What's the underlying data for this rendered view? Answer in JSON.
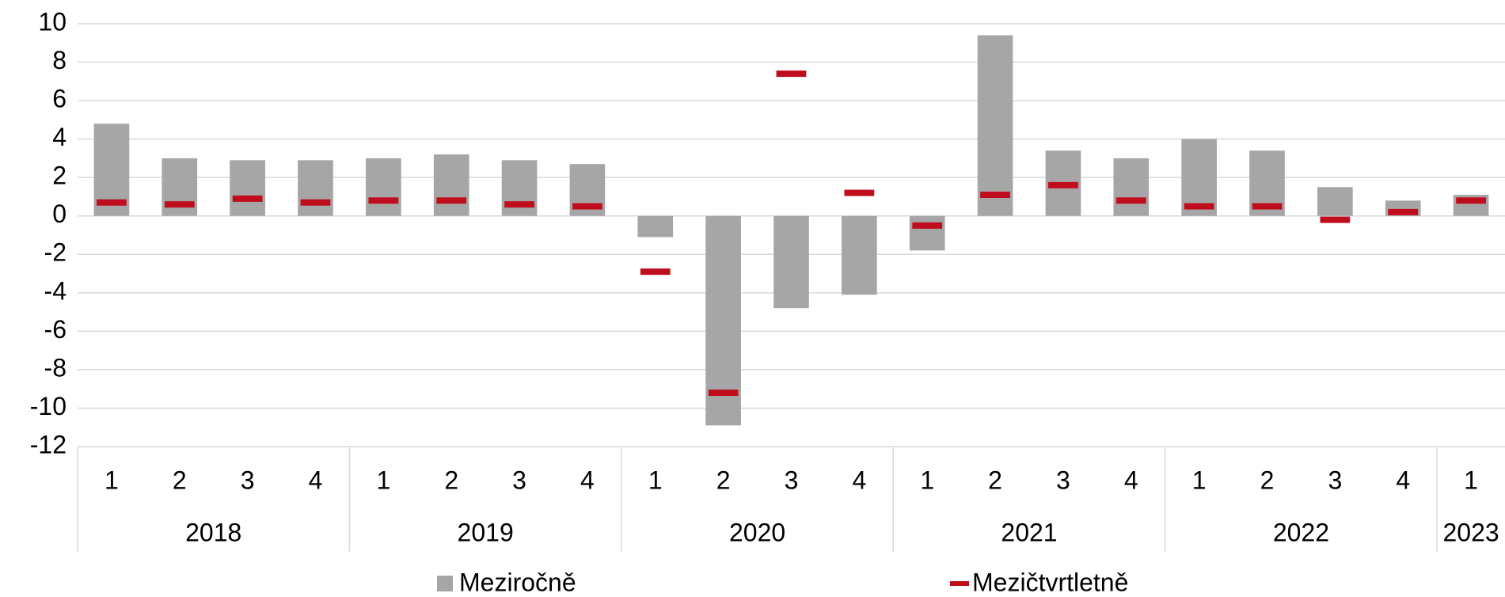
{
  "chart_data": {
    "type": "bar",
    "categories": [
      "1",
      "2",
      "3",
      "4",
      "1",
      "2",
      "3",
      "4",
      "1",
      "2",
      "3",
      "4",
      "1",
      "2",
      "3",
      "4",
      "1",
      "2",
      "3",
      "4",
      "1"
    ],
    "groups": [
      {
        "label": "2018",
        "size": 4
      },
      {
        "label": "2019",
        "size": 4
      },
      {
        "label": "2020",
        "size": 4
      },
      {
        "label": "2021",
        "size": 4
      },
      {
        "label": "2022",
        "size": 4
      },
      {
        "label": "2023",
        "size": 1
      }
    ],
    "series": [
      {
        "name": "Meziročně",
        "type": "bar",
        "color": "#a6a6a6",
        "values": [
          4.8,
          3.0,
          2.9,
          2.9,
          3.0,
          3.2,
          2.9,
          2.7,
          -1.1,
          -10.9,
          -4.8,
          -4.1,
          -1.8,
          9.4,
          3.4,
          3.0,
          4.0,
          3.4,
          1.5,
          0.8,
          1.1
        ]
      },
      {
        "name": "Mezičtvrtletně",
        "type": "dash",
        "color": "#c00d1e",
        "values": [
          0.7,
          0.6,
          0.9,
          0.7,
          0.8,
          0.8,
          0.6,
          0.5,
          -2.9,
          -9.2,
          7.4,
          1.2,
          -0.5,
          1.1,
          1.6,
          0.8,
          0.5,
          0.5,
          -0.2,
          0.2,
          0.8
        ]
      }
    ],
    "ylim": [
      -12,
      10
    ],
    "yticks": [
      -12,
      -10,
      -8,
      -6,
      -4,
      -2,
      0,
      2,
      4,
      6,
      8,
      10
    ],
    "grid": true,
    "legend": "bottom"
  }
}
